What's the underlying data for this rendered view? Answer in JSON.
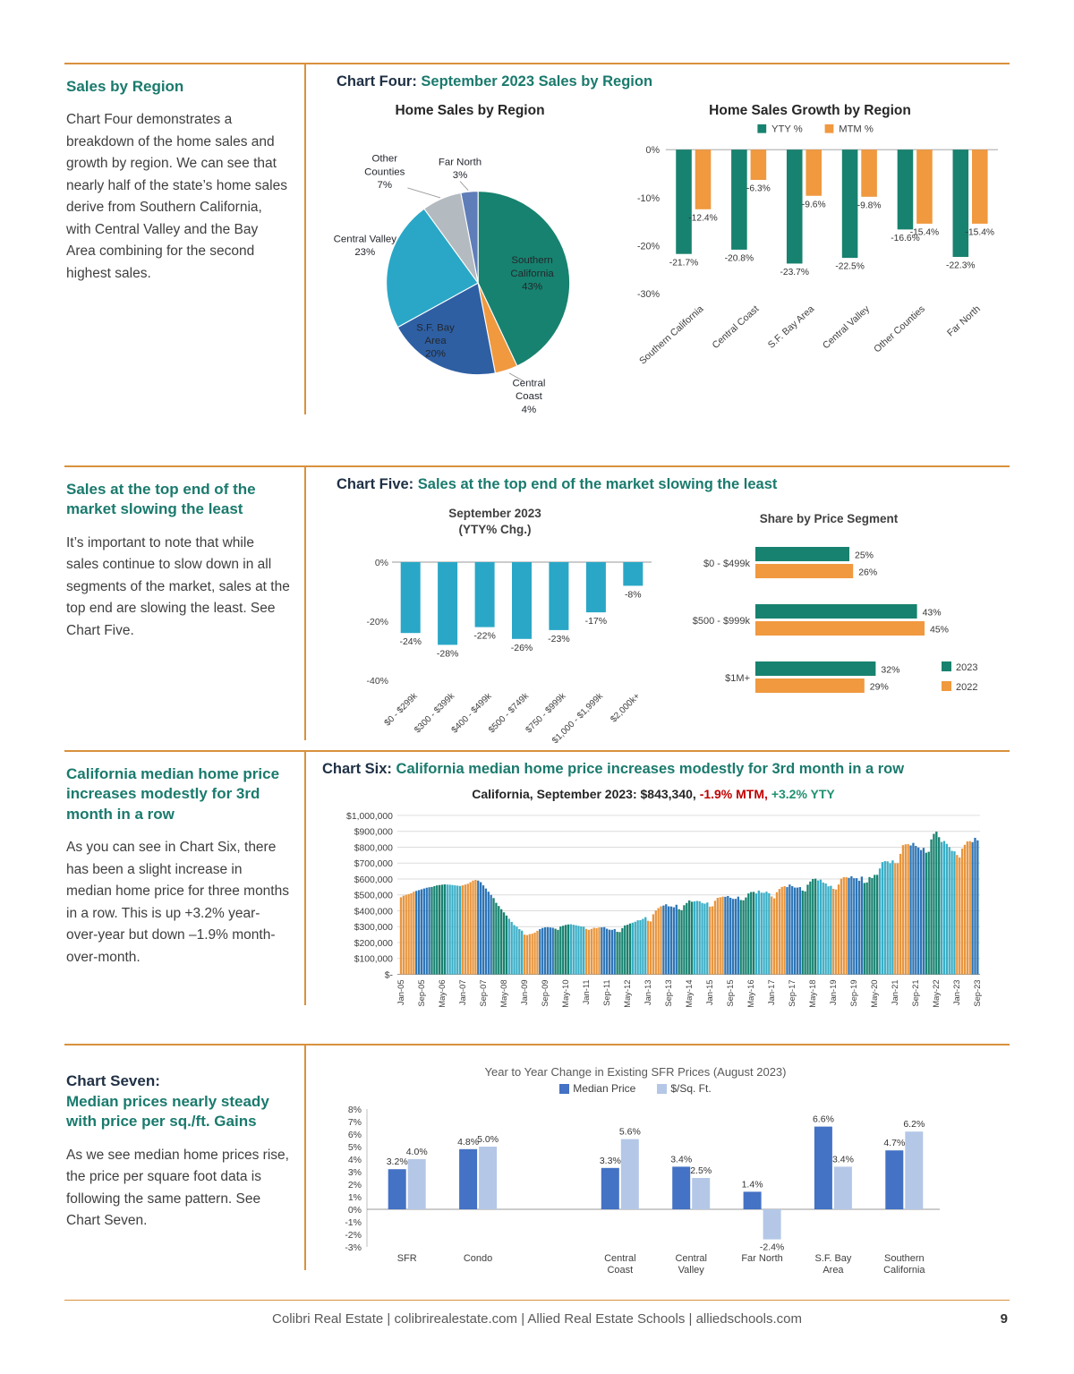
{
  "page": {
    "footer": "Colibri Real Estate   |   colibrirealestate.com   |   Allied Real Estate Schools   |   alliedschools.com",
    "page_number": "9"
  },
  "colors": {
    "accent_orange": "#d9913d",
    "teal_heading": "#1a7a6d",
    "dark_label": "#1f3045",
    "negative_red": "#c00000",
    "positive_green": "#1f9170"
  },
  "sections": [
    {
      "heading": "Sales by Region",
      "body": "Chart Four demonstrates a breakdown of the home sales and growth by region. We can see that nearly half of the state’s home sales derive from Southern California, with Central Valley and the Bay Area combining for the second highest sales.",
      "chart_label": "Chart Four:",
      "chart_title": "September 2023 Sales by Region"
    },
    {
      "heading": "Sales at the top end of the market slowing the least",
      "body": "It’s important to note that while sales continue to slow down in all segments of the market, sales at the top end are slowing the least. See Chart Five.",
      "chart_label": "Chart Five:",
      "chart_title": "Sales at the top end of the market slowing the least"
    },
    {
      "heading": "California median home price increases modestly for 3rd month in a row",
      "body": "As you can see in Chart Six, there has been a slight increase in median home price for three months in a row. This is up +3.2% year-over-year but down –1.9% month-over-month.",
      "chart_label": "Chart Six:",
      "chart_title": "California median home price increases modestly for 3rd month in a row"
    },
    {
      "heading_label": "Chart Seven:",
      "heading": "Median prices nearly steady with price per sq./ft. Gains",
      "body": "As we see median home prices rise, the price per square foot data is following the same pattern. See Chart Seven."
    }
  ],
  "chart_data": [
    {
      "id": "home-sales-by-region",
      "type": "pie",
      "title": "Home Sales by Region",
      "slices": [
        {
          "label": "Southern California",
          "value": 43,
          "color": "#17826f",
          "label_lines": [
            "Southern",
            "California",
            "43%"
          ],
          "inside": true
        },
        {
          "label": "Central Coast",
          "value": 4,
          "color": "#f0993f",
          "label_lines": [
            "Central",
            "Coast",
            "4%"
          ],
          "inside": false
        },
        {
          "label": "S.F. Bay Area",
          "value": 20,
          "color": "#2e5fa3",
          "label_lines": [
            "S.F. Bay",
            "Area",
            "20%"
          ],
          "inside": true
        },
        {
          "label": "Central Valley",
          "value": 23,
          "color": "#2aa7c7",
          "label_lines": [
            "Central Valley",
            "23%"
          ],
          "inside": false
        },
        {
          "label": "Other Counties",
          "value": 7,
          "color": "#b3bac0",
          "label_lines": [
            "Other",
            "Counties",
            "7%"
          ],
          "inside": false
        },
        {
          "label": "Far North",
          "value": 3,
          "color": "#5f7db8",
          "label_lines": [
            "Far North",
            "3%"
          ],
          "inside": false
        }
      ]
    },
    {
      "id": "home-sales-growth-by-region",
      "type": "grouped_bar",
      "title": "Home Sales Growth by Region",
      "categories": [
        "Southern California",
        "Central Coast",
        "S.F. Bay Area",
        "Central Valley",
        "Other Counties",
        "Far North"
      ],
      "series": [
        {
          "name": "YTY %",
          "color": "#17826f",
          "values": [
            -21.7,
            -20.8,
            -23.7,
            -22.5,
            -16.6,
            -22.3
          ]
        },
        {
          "name": "MTM %",
          "color": "#f0993f",
          "values": [
            -12.4,
            -6.3,
            -9.6,
            -9.8,
            -15.4,
            -15.4
          ]
        }
      ],
      "ylim": [
        -30,
        0
      ],
      "yticks": [
        "0%",
        "-10%",
        "-20%",
        "-30%"
      ]
    },
    {
      "id": "september-2023-yty-change-by-price",
      "type": "bar",
      "title": "September 2023",
      "subtitle": "(YTY% Chg.)",
      "categories": [
        "$0 - $299k",
        "$300 - $399k",
        "$400 - $499k",
        "$500 - $749k",
        "$750 - $999k",
        "$1,000 - $1,999k",
        "$2,000k+"
      ],
      "values": [
        -24,
        -28,
        -22,
        -26,
        -23,
        -17,
        -8
      ],
      "bar_color": "#2aa7c7",
      "ylim": [
        -40,
        0
      ],
      "yticks": [
        "0%",
        "-20%",
        "-40%"
      ]
    },
    {
      "id": "share-by-price-segment",
      "type": "hbar",
      "title": "Share by Price Segment",
      "categories": [
        "$0 - $499k",
        "$500 - $999k",
        "$1M+"
      ],
      "series": [
        {
          "name": "2023",
          "color": "#17826f",
          "values": [
            25,
            43,
            32
          ]
        },
        {
          "name": "2022",
          "color": "#f0993f",
          "values": [
            26,
            45,
            29
          ]
        }
      ]
    },
    {
      "id": "california-median-price-history",
      "type": "bar",
      "title_main": "California, September 2023: $843,340,",
      "title_mtm": "-1.9% MTM,",
      "title_yty": "+3.2% YTY",
      "ylim": [
        0,
        1000000
      ],
      "ytick_labels": [
        "$1,000,000",
        "$900,000",
        "$800,000",
        "$700,000",
        "$600,000",
        "$500,000",
        "$400,000",
        "$300,000",
        "$200,000",
        "$100,000",
        "$-"
      ],
      "xtick_labels": [
        "Jan-05",
        "Sep-05",
        "May-06",
        "Jan-07",
        "Sep-07",
        "May-08",
        "Jan-09",
        "Sep-09",
        "May-10",
        "Jan-11",
        "Sep-11",
        "May-12",
        "Jan-13",
        "Sep-13",
        "May-14",
        "Jan-15",
        "Sep-15",
        "May-16",
        "Jan-17",
        "Sep-17",
        "May-18",
        "Jan-19",
        "Sep-19",
        "May-20",
        "Jan-21",
        "Sep-21",
        "May-22",
        "Jan-23",
        "Sep-23"
      ],
      "values_unit": "USD thousands",
      "values": [
        485,
        495,
        500,
        505,
        510,
        520,
        525,
        530,
        535,
        540,
        545,
        548,
        550,
        555,
        560,
        562,
        564,
        566,
        565,
        564,
        562,
        560,
        558,
        556,
        560,
        565,
        570,
        580,
        590,
        594,
        590,
        580,
        560,
        540,
        520,
        500,
        480,
        450,
        430,
        410,
        390,
        370,
        350,
        330,
        310,
        300,
        285,
        275,
        250,
        247,
        253,
        256,
        263,
        274,
        285,
        292,
        296,
        297,
        295,
        293,
        287,
        280,
        301,
        306,
        311,
        314,
        315,
        312,
        309,
        305,
        302,
        300,
        286,
        280,
        286,
        293,
        291,
        295,
        296,
        297,
        287,
        281,
        280,
        285,
        268,
        266,
        291,
        308,
        312,
        320,
        325,
        331,
        340,
        341,
        349,
        360,
        337,
        333,
        378,
        402,
        417,
        428,
        433,
        441,
        428,
        427,
        422,
        438,
        410,
        404,
        435,
        449,
        465,
        457,
        459,
        462,
        460,
        449,
        445,
        452,
        426,
        428,
        463,
        481,
        485,
        489,
        488,
        493,
        482,
        475,
        475,
        489,
        468,
        466,
        484,
        509,
        518,
        519,
        509,
        527,
        514,
        513,
        520,
        510,
        490,
        478,
        517,
        537,
        550,
        555,
        549,
        565,
        555,
        546,
        546,
        549,
        527,
        522,
        564,
        584,
        600,
        602,
        591,
        596,
        578,
        572,
        554,
        557,
        538,
        534,
        565,
        602,
        611,
        611,
        607,
        617,
        605,
        605,
        589,
        615,
        575,
        578,
        612,
        606,
        626,
        626,
        666,
        706,
        712,
        711,
        699,
        717,
        699,
        699,
        758,
        813,
        818,
        819,
        811,
        827,
        808,
        798,
        782,
        796,
        765,
        771,
        849,
        884,
        898,
        863,
        833,
        839,
        821,
        801,
        777,
        774,
        751,
        735,
        791,
        815,
        836,
        838,
        832,
        859,
        843
      ]
    },
    {
      "id": "yty-change-existing-sfr-prices",
      "type": "grouped_bar",
      "title": "Year to Year Change in Existing SFR Prices (August 2023)",
      "categories": [
        "SFR",
        "Condo",
        "",
        "Central\nCoast",
        "Central\nValley",
        "Far North",
        "S.F. Bay\nArea",
        "Southern\nCalifornia"
      ],
      "series": [
        {
          "name": "Median Price",
          "color": "#4472c4",
          "values": [
            3.2,
            4.8,
            null,
            3.3,
            3.4,
            1.4,
            6.6,
            4.7
          ]
        },
        {
          "name": "$/Sq. Ft.",
          "color": "#b4c7e7",
          "values": [
            4.0,
            5.0,
            null,
            5.6,
            2.5,
            -2.4,
            3.4,
            6.2
          ]
        }
      ],
      "ylim": [
        -3,
        8
      ],
      "yticks": [
        "8%",
        "7%",
        "6%",
        "5%",
        "4%",
        "3%",
        "2%",
        "1%",
        "0%",
        "-1%",
        "-2%",
        "-3%"
      ]
    }
  ]
}
